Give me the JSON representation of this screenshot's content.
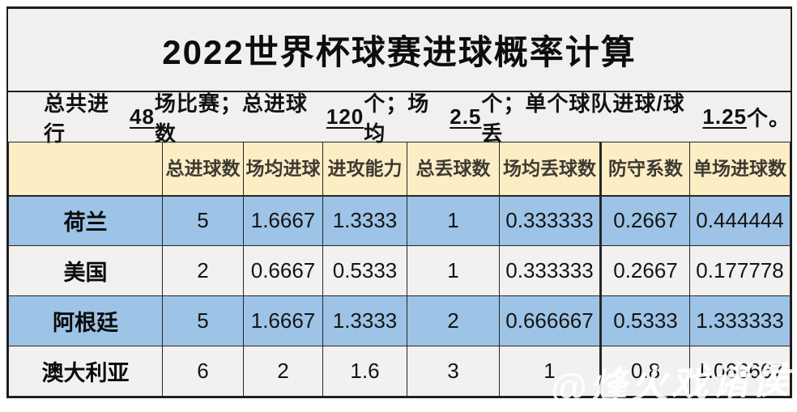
{
  "title": "2022世界杯球赛进球概率计算",
  "subtitle": {
    "segments": [
      {
        "text": "总共进行"
      },
      {
        "text": "48"
      },
      {
        "text": "场比赛；总进球数"
      },
      {
        "text": "120"
      },
      {
        "text": "个；场均"
      },
      {
        "text": "2.5"
      },
      {
        "text": "个；单个球队进球/球丢"
      },
      {
        "text": "1.25"
      },
      {
        "text": "个。"
      }
    ]
  },
  "watermark": "@烽火戏诸侯",
  "colors": {
    "band_bg": "#f1f0ee",
    "header_bg": "#fcedc5",
    "row_blue": "#9dc3e6",
    "row_light": "#f2f1ef",
    "border": "#1c1c1c",
    "watermark": "#ffffff"
  },
  "chart_data": {
    "type": "table",
    "title": "2022世界杯球赛进球概率计算",
    "summary": {
      "total_matches": 48,
      "total_goals": 120,
      "goals_per_match": 2.5,
      "goals_per_team_per_match": 1.25
    },
    "columns": [
      "",
      "总进球数",
      "场均进球",
      "进攻能力",
      "总丢球数",
      "场均丢球数",
      "防守系数",
      "单场进球数"
    ],
    "rows": [
      {
        "team": "荷兰",
        "values": [
          "5",
          "1.6667",
          "1.3333",
          "1",
          "0.333333",
          "0.2667",
          "0.444444"
        ]
      },
      {
        "team": "美国",
        "values": [
          "2",
          "0.6667",
          "0.5333",
          "1",
          "0.333333",
          "0.2667",
          "0.177778"
        ]
      },
      {
        "team": "阿根廷",
        "values": [
          "5",
          "1.6667",
          "1.3333",
          "2",
          "0.666667",
          "0.5333",
          "1.333333"
        ]
      },
      {
        "team": "澳大利亚",
        "values": [
          "6",
          "2",
          "1.6",
          "3",
          "1",
          "0.8",
          "1.066667"
        ]
      }
    ]
  }
}
